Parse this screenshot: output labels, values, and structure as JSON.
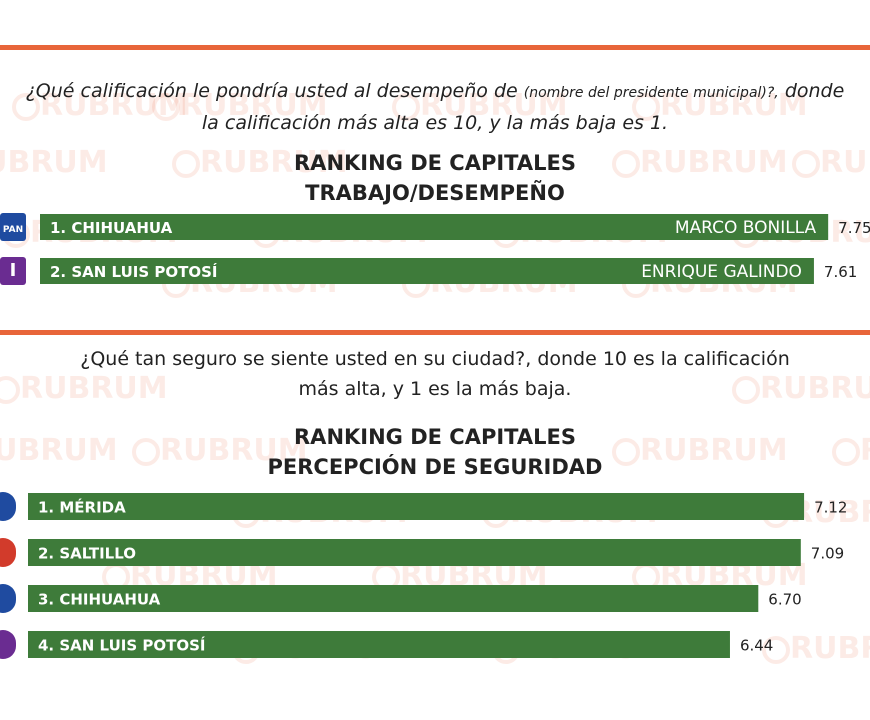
{
  "chart_data": [
    {
      "type": "bar",
      "question": [
        "¿Qué calificación le pondría usted al desempeño de",
        "(nombre del presidente municipal)?,",
        "donde la calificación más alta es 10, y la más baja es 1."
      ],
      "title": "RANKING DE CAPITALES",
      "subtitle": "TRABAJO/DESEMPEÑO",
      "categories": [
        "1. CHIHUAHUA",
        "2. SAN LUIS POTOSÍ"
      ],
      "names": [
        "MARCO BONILLA",
        "ENRIQUE GALINDO"
      ],
      "parties": [
        "PAN",
        "I"
      ],
      "values": [
        7.75,
        7.61
      ],
      "color": "#3e7b3a"
    },
    {
      "type": "bar",
      "question": [
        "¿Qué tan seguro se siente usted en su ciudad?, donde 10 es la calificación más alta, y  1 es la más baja."
      ],
      "title": "RANKING DE CAPITALES",
      "subtitle": "PERCEPCIÓN DE SEGURIDAD",
      "categories": [
        "1. MÉRIDA",
        "2. SALTILLO",
        "3. CHIHUAHUA",
        "4. SAN LUIS POTOSÍ"
      ],
      "values": [
        7.12,
        7.09,
        6.7,
        6.44
      ],
      "value_labels": [
        "7.12",
        "7.09",
        "6.70",
        "6.44"
      ],
      "color": "#3e7b3a"
    }
  ],
  "watermark": "RUBRUM"
}
